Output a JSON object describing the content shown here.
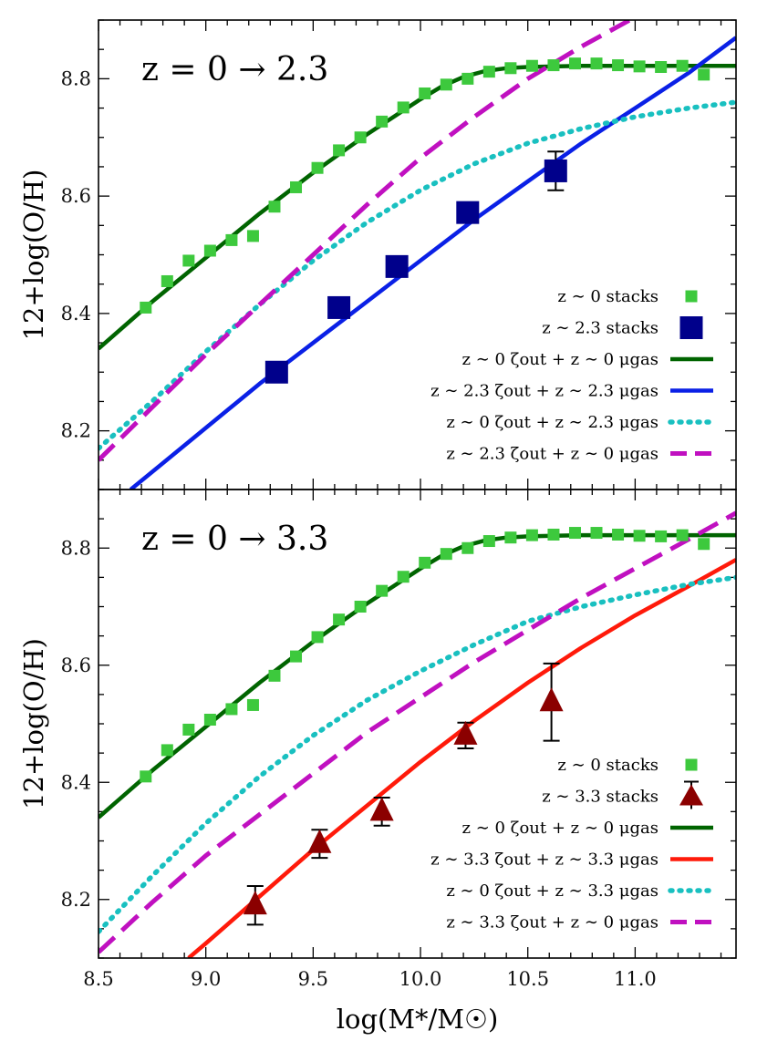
{
  "chart_data": [
    {
      "type": "line",
      "title": "z = 0 → 2.3",
      "xlabel": "log(M*/M☉)",
      "ylabel": "12+log(O/H)",
      "xlim": [
        8.5,
        11.47
      ],
      "ylim": [
        8.1,
        8.9
      ],
      "xticks": [
        "8.5",
        "9.0",
        "9.5",
        "10.0",
        "10.5",
        "11.0"
      ],
      "yticks": [
        "8.2",
        "8.4",
        "8.6",
        "8.8"
      ],
      "grid": false,
      "legend_position": "lower-right",
      "legend": [
        {
          "label": "z ∼ 0 stacks",
          "marker": "square-small",
          "color": "#3dc93d"
        },
        {
          "label": "z ∼ 2.3 stacks",
          "marker": "square-large",
          "color": "#00008b"
        },
        {
          "label": "z ∼ 0 ζout + z ∼ 0 μgas",
          "style": "solid",
          "color": "#006400"
        },
        {
          "label": "z ∼ 2.3 ζout + z ∼ 2.3 μgas",
          "style": "solid",
          "color": "#0a20e6"
        },
        {
          "label": "z ∼ 0 ζout + z ∼ 2.3 μgas",
          "style": "dotted",
          "color": "#19c0c0"
        },
        {
          "label": "z ∼ 2.3 ζout + z ∼ 0 μgas",
          "style": "dashed",
          "color": "#c010c0"
        }
      ],
      "series": [
        {
          "name": "z ∼ 0 stacks",
          "kind": "scatter",
          "marker": "square-small",
          "color": "#3dc93d",
          "x": [
            8.72,
            8.82,
            8.92,
            9.02,
            9.12,
            9.22,
            9.32,
            9.42,
            9.52,
            9.62,
            9.72,
            9.82,
            9.92,
            10.02,
            10.12,
            10.22,
            10.32,
            10.42,
            10.52,
            10.62,
            10.72,
            10.82,
            10.92,
            11.02,
            11.12,
            11.22,
            11.32
          ],
          "y": [
            8.41,
            8.455,
            8.49,
            8.507,
            8.525,
            8.532,
            8.582,
            8.615,
            8.648,
            8.678,
            8.7,
            8.727,
            8.751,
            8.775,
            8.79,
            8.8,
            8.812,
            8.818,
            8.822,
            8.823,
            8.826,
            8.826,
            8.823,
            8.821,
            8.82,
            8.822,
            8.807
          ]
        },
        {
          "name": "z ∼ 2.3 stacks",
          "kind": "scatter",
          "marker": "square-large",
          "color": "#00008b",
          "x": [
            9.33,
            9.62,
            9.89,
            10.22,
            10.63
          ],
          "y": [
            8.3,
            8.41,
            8.48,
            8.572,
            8.643
          ],
          "yerr": [
            0,
            0,
            0,
            0,
            0.033
          ]
        },
        {
          "name": "z ∼ 0 ζout + z ∼ 0 μgas",
          "kind": "line",
          "style": "solid",
          "color": "#006400",
          "x": [
            8.5,
            8.75,
            9.0,
            9.25,
            9.5,
            9.75,
            10.0,
            10.1,
            10.2,
            10.3,
            10.4,
            10.5,
            10.75,
            11.0,
            11.25,
            11.47
          ],
          "y": [
            8.34,
            8.42,
            8.495,
            8.57,
            8.64,
            8.705,
            8.765,
            8.787,
            8.803,
            8.813,
            8.818,
            8.82,
            8.822,
            8.822,
            8.822,
            8.822
          ]
        },
        {
          "name": "z ∼ 2.3 ζout + z ∼ 2.3 μgas",
          "kind": "line",
          "style": "solid",
          "color": "#0a20e6",
          "x": [
            8.65,
            8.85,
            9.0,
            9.25,
            9.5,
            9.75,
            10.0,
            10.25,
            10.5,
            10.75,
            11.0,
            11.25,
            11.47
          ],
          "y": [
            8.1,
            8.16,
            8.205,
            8.28,
            8.35,
            8.42,
            8.49,
            8.56,
            8.625,
            8.69,
            8.75,
            8.81,
            8.87
          ]
        },
        {
          "name": "z ∼ 0 ζout + z ∼ 2.3 μgas",
          "kind": "line",
          "style": "dotted",
          "color": "#19c0c0",
          "x": [
            8.5,
            8.75,
            9.0,
            9.25,
            9.5,
            9.75,
            10.0,
            10.25,
            10.5,
            10.75,
            11.0,
            11.25,
            11.47
          ],
          "y": [
            8.17,
            8.25,
            8.335,
            8.415,
            8.49,
            8.555,
            8.61,
            8.655,
            8.69,
            8.715,
            8.735,
            8.75,
            8.76
          ]
        },
        {
          "name": "z ∼ 2.3 ζout + z ∼ 0 μgas",
          "kind": "line",
          "style": "dashed",
          "color": "#c010c0",
          "x": [
            8.5,
            8.75,
            9.0,
            9.25,
            9.5,
            9.75,
            10.0,
            10.25,
            10.5,
            10.75,
            11.0,
            11.15
          ],
          "y": [
            8.15,
            8.24,
            8.33,
            8.415,
            8.5,
            8.585,
            8.665,
            8.735,
            8.8,
            8.855,
            8.905,
            8.93
          ]
        }
      ]
    },
    {
      "type": "line",
      "title": "z = 0 → 3.3",
      "xlabel": "log(M*/M☉)",
      "ylabel": "12+log(O/H)",
      "xlim": [
        8.5,
        11.47
      ],
      "ylim": [
        8.1,
        8.9
      ],
      "xticks": [
        "8.5",
        "9.0",
        "9.5",
        "10.0",
        "10.5",
        "11.0"
      ],
      "yticks": [
        "8.2",
        "8.4",
        "8.6",
        "8.8"
      ],
      "grid": false,
      "legend_position": "lower-right",
      "legend": [
        {
          "label": "z ∼ 0 stacks",
          "marker": "square-small",
          "color": "#3dc93d"
        },
        {
          "label": "z ∼ 3.3 stacks",
          "marker": "triangle",
          "color": "#8b0000"
        },
        {
          "label": "z ∼ 0 ζout + z ∼ 0 μgas",
          "style": "solid",
          "color": "#006400"
        },
        {
          "label": "z ∼ 3.3 ζout + z ∼ 3.3 μgas",
          "style": "solid",
          "color": "#ff1a0a"
        },
        {
          "label": "z ∼ 0 ζout + z ∼ 3.3 μgas",
          "style": "dotted",
          "color": "#19c0c0"
        },
        {
          "label": "z ∼ 3.3 ζout + z ∼ 0 μgas",
          "style": "dashed",
          "color": "#c010c0"
        }
      ],
      "series": [
        {
          "name": "z ∼ 0 stacks",
          "kind": "scatter",
          "marker": "square-small",
          "color": "#3dc93d",
          "x": [
            8.72,
            8.82,
            8.92,
            9.02,
            9.12,
            9.22,
            9.32,
            9.42,
            9.52,
            9.62,
            9.72,
            9.82,
            9.92,
            10.02,
            10.12,
            10.22,
            10.32,
            10.42,
            10.52,
            10.62,
            10.72,
            10.82,
            10.92,
            11.02,
            11.12,
            11.22,
            11.32
          ],
          "y": [
            8.41,
            8.455,
            8.49,
            8.507,
            8.525,
            8.532,
            8.582,
            8.615,
            8.648,
            8.678,
            8.7,
            8.727,
            8.751,
            8.775,
            8.79,
            8.8,
            8.812,
            8.818,
            8.822,
            8.823,
            8.826,
            8.826,
            8.823,
            8.821,
            8.82,
            8.822,
            8.807
          ]
        },
        {
          "name": "z ∼ 3.3 stacks",
          "kind": "scatter",
          "marker": "triangle",
          "color": "#8b0000",
          "x": [
            9.23,
            9.53,
            9.82,
            10.21,
            10.61
          ],
          "y": [
            8.19,
            8.295,
            8.35,
            8.48,
            8.537
          ],
          "yerr": [
            0.033,
            0.024,
            0.024,
            0.022,
            0.066
          ]
        },
        {
          "name": "z ∼ 0 ζout + z ∼ 0 μgas",
          "kind": "line",
          "style": "solid",
          "color": "#006400",
          "x": [
            8.5,
            8.75,
            9.0,
            9.25,
            9.5,
            9.75,
            10.0,
            10.1,
            10.2,
            10.3,
            10.4,
            10.5,
            10.75,
            11.0,
            11.25,
            11.47
          ],
          "y": [
            8.34,
            8.42,
            8.495,
            8.57,
            8.64,
            8.705,
            8.765,
            8.787,
            8.803,
            8.813,
            8.818,
            8.82,
            8.822,
            8.822,
            8.822,
            8.822
          ]
        },
        {
          "name": "z ∼ 3.3 ζout + z ∼ 3.3 μgas",
          "kind": "line",
          "style": "solid",
          "color": "#ff1a0a",
          "x": [
            8.92,
            9.0,
            9.25,
            9.5,
            9.75,
            10.0,
            10.25,
            10.5,
            10.75,
            11.0,
            11.25,
            11.47
          ],
          "y": [
            8.1,
            8.125,
            8.205,
            8.285,
            8.36,
            8.435,
            8.505,
            8.57,
            8.63,
            8.685,
            8.735,
            8.78
          ]
        },
        {
          "name": "z ∼ 0 ζout + z ∼ 3.3 μgas",
          "kind": "line",
          "style": "dotted",
          "color": "#19c0c0",
          "x": [
            8.5,
            8.75,
            9.0,
            9.25,
            9.5,
            9.75,
            10.0,
            10.25,
            10.5,
            10.75,
            11.0,
            11.25,
            11.47
          ],
          "y": [
            8.145,
            8.24,
            8.33,
            8.41,
            8.48,
            8.54,
            8.59,
            8.635,
            8.675,
            8.7,
            8.72,
            8.738,
            8.75
          ]
        },
        {
          "name": "z ∼ 3.3 ζout + z ∼ 0 μgas",
          "kind": "line",
          "style": "dashed",
          "color": "#c010c0",
          "x": [
            8.5,
            8.75,
            9.0,
            9.25,
            9.5,
            9.75,
            10.0,
            10.25,
            10.5,
            10.75,
            11.0,
            11.25,
            11.47
          ],
          "y": [
            8.11,
            8.195,
            8.275,
            8.345,
            8.415,
            8.485,
            8.545,
            8.605,
            8.66,
            8.715,
            8.765,
            8.815,
            8.86
          ]
        }
      ]
    }
  ]
}
